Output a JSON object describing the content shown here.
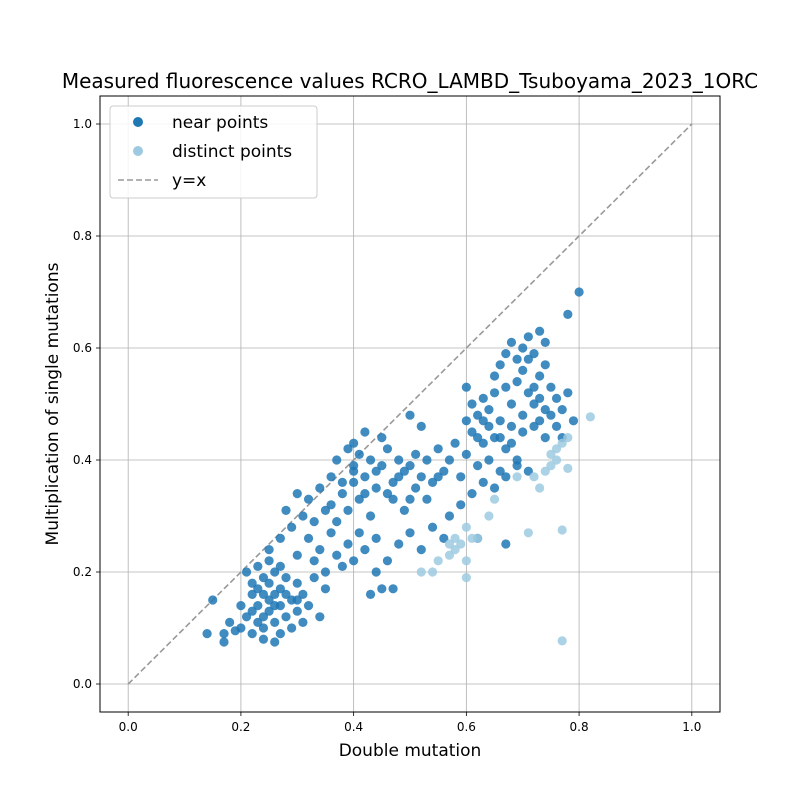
{
  "chart_data": {
    "type": "scatter",
    "title": "Measured fluorescence values RCRO_LAMBD_Tsuboyama_2023_1ORC",
    "xlabel": "Double mutation",
    "ylabel": "Multiplication of single mutations",
    "xlim": [
      -0.05,
      1.05
    ],
    "ylim": [
      -0.05,
      1.05
    ],
    "xticks": [
      "0.0",
      "0.2",
      "0.4",
      "0.6",
      "0.8",
      "1.0"
    ],
    "yticks": [
      "0.0",
      "0.2",
      "0.4",
      "0.6",
      "0.8",
      "1.0"
    ],
    "grid": true,
    "legend": {
      "placement": "top-left",
      "entries": [
        {
          "label": "near points",
          "kind": "marker",
          "color": "#1f77b4"
        },
        {
          "label": "distinct points",
          "kind": "marker",
          "color": "#9ecae1"
        },
        {
          "label": "y=x",
          "kind": "dashed-line",
          "color": "#999999"
        }
      ]
    },
    "reference_line": {
      "name": "y=x",
      "points": [
        [
          0,
          0
        ],
        [
          1,
          1
        ]
      ],
      "color": "#999999"
    },
    "series": [
      {
        "name": "near points",
        "color": "#1f77b4",
        "points": [
          [
            0.14,
            0.09
          ],
          [
            0.15,
            0.15
          ],
          [
            0.17,
            0.09
          ],
          [
            0.17,
            0.075
          ],
          [
            0.18,
            0.11
          ],
          [
            0.19,
            0.095
          ],
          [
            0.2,
            0.14
          ],
          [
            0.2,
            0.1
          ],
          [
            0.21,
            0.12
          ],
          [
            0.21,
            0.2
          ],
          [
            0.22,
            0.13
          ],
          [
            0.22,
            0.16
          ],
          [
            0.22,
            0.09
          ],
          [
            0.23,
            0.17
          ],
          [
            0.23,
            0.11
          ],
          [
            0.23,
            0.14
          ],
          [
            0.24,
            0.19
          ],
          [
            0.24,
            0.12
          ],
          [
            0.24,
            0.1
          ],
          [
            0.25,
            0.15
          ],
          [
            0.25,
            0.18
          ],
          [
            0.25,
            0.13
          ],
          [
            0.26,
            0.16
          ],
          [
            0.26,
            0.11
          ],
          [
            0.26,
            0.2
          ],
          [
            0.27,
            0.14
          ],
          [
            0.27,
            0.17
          ],
          [
            0.27,
            0.09
          ],
          [
            0.28,
            0.12
          ],
          [
            0.28,
            0.19
          ],
          [
            0.29,
            0.15
          ],
          [
            0.29,
            0.1
          ],
          [
            0.3,
            0.13
          ],
          [
            0.3,
            0.18
          ],
          [
            0.31,
            0.16
          ],
          [
            0.31,
            0.11
          ],
          [
            0.32,
            0.14
          ],
          [
            0.33,
            0.19
          ],
          [
            0.34,
            0.12
          ],
          [
            0.35,
            0.17
          ],
          [
            0.24,
            0.08
          ],
          [
            0.26,
            0.075
          ],
          [
            0.23,
            0.21
          ],
          [
            0.25,
            0.22
          ],
          [
            0.27,
            0.21
          ],
          [
            0.22,
            0.18
          ],
          [
            0.24,
            0.16
          ],
          [
            0.26,
            0.14
          ],
          [
            0.28,
            0.16
          ],
          [
            0.3,
            0.15
          ],
          [
            0.25,
            0.24
          ],
          [
            0.27,
            0.26
          ],
          [
            0.29,
            0.28
          ],
          [
            0.3,
            0.23
          ],
          [
            0.31,
            0.3
          ],
          [
            0.32,
            0.26
          ],
          [
            0.33,
            0.29
          ],
          [
            0.34,
            0.24
          ],
          [
            0.35,
            0.31
          ],
          [
            0.36,
            0.27
          ],
          [
            0.28,
            0.31
          ],
          [
            0.3,
            0.34
          ],
          [
            0.32,
            0.33
          ],
          [
            0.34,
            0.35
          ],
          [
            0.36,
            0.32
          ],
          [
            0.38,
            0.34
          ],
          [
            0.37,
            0.29
          ],
          [
            0.39,
            0.31
          ],
          [
            0.4,
            0.36
          ],
          [
            0.41,
            0.33
          ],
          [
            0.33,
            0.22
          ],
          [
            0.35,
            0.2
          ],
          [
            0.37,
            0.23
          ],
          [
            0.38,
            0.21
          ],
          [
            0.39,
            0.25
          ],
          [
            0.4,
            0.22
          ],
          [
            0.41,
            0.27
          ],
          [
            0.42,
            0.24
          ],
          [
            0.43,
            0.3
          ],
          [
            0.44,
            0.26
          ],
          [
            0.4,
            0.38
          ],
          [
            0.41,
            0.41
          ],
          [
            0.42,
            0.37
          ],
          [
            0.43,
            0.4
          ],
          [
            0.44,
            0.35
          ],
          [
            0.45,
            0.39
          ],
          [
            0.46,
            0.42
          ],
          [
            0.47,
            0.36
          ],
          [
            0.48,
            0.4
          ],
          [
            0.49,
            0.38
          ],
          [
            0.4,
            0.43
          ],
          [
            0.42,
            0.45
          ],
          [
            0.45,
            0.44
          ],
          [
            0.5,
            0.48
          ],
          [
            0.52,
            0.46
          ],
          [
            0.47,
            0.33
          ],
          [
            0.49,
            0.31
          ],
          [
            0.51,
            0.35
          ],
          [
            0.53,
            0.33
          ],
          [
            0.55,
            0.37
          ],
          [
            0.45,
            0.17
          ],
          [
            0.47,
            0.17
          ],
          [
            0.43,
            0.16
          ],
          [
            0.44,
            0.2
          ],
          [
            0.46,
            0.22
          ],
          [
            0.48,
            0.25
          ],
          [
            0.5,
            0.27
          ],
          [
            0.52,
            0.24
          ],
          [
            0.54,
            0.28
          ],
          [
            0.56,
            0.26
          ],
          [
            0.5,
            0.39
          ],
          [
            0.51,
            0.41
          ],
          [
            0.52,
            0.37
          ],
          [
            0.53,
            0.4
          ],
          [
            0.54,
            0.36
          ],
          [
            0.55,
            0.42
          ],
          [
            0.56,
            0.38
          ],
          [
            0.57,
            0.4
          ],
          [
            0.58,
            0.43
          ],
          [
            0.59,
            0.37
          ],
          [
            0.6,
            0.41
          ],
          [
            0.61,
            0.45
          ],
          [
            0.62,
            0.39
          ],
          [
            0.63,
            0.43
          ],
          [
            0.64,
            0.4
          ],
          [
            0.65,
            0.44
          ],
          [
            0.66,
            0.38
          ],
          [
            0.67,
            0.42
          ],
          [
            0.68,
            0.46
          ],
          [
            0.69,
            0.4
          ],
          [
            0.6,
            0.47
          ],
          [
            0.61,
            0.5
          ],
          [
            0.62,
            0.48
          ],
          [
            0.63,
            0.51
          ],
          [
            0.64,
            0.49
          ],
          [
            0.65,
            0.52
          ],
          [
            0.66,
            0.47
          ],
          [
            0.67,
            0.53
          ],
          [
            0.68,
            0.5
          ],
          [
            0.69,
            0.54
          ],
          [
            0.7,
            0.48
          ],
          [
            0.71,
            0.52
          ],
          [
            0.72,
            0.5
          ],
          [
            0.73,
            0.55
          ],
          [
            0.74,
            0.49
          ],
          [
            0.7,
            0.56
          ],
          [
            0.71,
            0.58
          ],
          [
            0.72,
            0.53
          ],
          [
            0.73,
            0.51
          ],
          [
            0.74,
            0.57
          ],
          [
            0.65,
            0.55
          ],
          [
            0.66,
            0.57
          ],
          [
            0.67,
            0.59
          ],
          [
            0.68,
            0.61
          ],
          [
            0.69,
            0.58
          ],
          [
            0.7,
            0.6
          ],
          [
            0.71,
            0.62
          ],
          [
            0.72,
            0.59
          ],
          [
            0.73,
            0.63
          ],
          [
            0.74,
            0.61
          ],
          [
            0.75,
            0.53
          ],
          [
            0.76,
            0.51
          ],
          [
            0.77,
            0.49
          ],
          [
            0.78,
            0.52
          ],
          [
            0.79,
            0.47
          ],
          [
            0.77,
            0.44
          ],
          [
            0.76,
            0.46
          ],
          [
            0.8,
            0.7
          ],
          [
            0.78,
            0.66
          ],
          [
            0.6,
            0.53
          ],
          [
            0.64,
            0.46
          ],
          [
            0.66,
            0.44
          ],
          [
            0.68,
            0.43
          ],
          [
            0.7,
            0.45
          ],
          [
            0.72,
            0.46
          ],
          [
            0.74,
            0.44
          ],
          [
            0.73,
            0.47
          ],
          [
            0.75,
            0.48
          ],
          [
            0.62,
            0.44
          ],
          [
            0.63,
            0.47
          ],
          [
            0.57,
            0.3
          ],
          [
            0.59,
            0.32
          ],
          [
            0.61,
            0.34
          ],
          [
            0.63,
            0.36
          ],
          [
            0.65,
            0.35
          ],
          [
            0.67,
            0.37
          ],
          [
            0.69,
            0.39
          ],
          [
            0.71,
            0.38
          ],
          [
            0.62,
            0.26
          ],
          [
            0.67,
            0.25
          ],
          [
            0.36,
            0.37
          ],
          [
            0.37,
            0.4
          ],
          [
            0.38,
            0.36
          ],
          [
            0.39,
            0.42
          ],
          [
            0.4,
            0.39
          ],
          [
            0.42,
            0.34
          ],
          [
            0.44,
            0.38
          ],
          [
            0.46,
            0.34
          ],
          [
            0.48,
            0.37
          ],
          [
            0.5,
            0.33
          ]
        ]
      },
      {
        "name": "distinct points",
        "color": "#9ecae1",
        "points": [
          [
            0.52,
            0.2
          ],
          [
            0.54,
            0.2
          ],
          [
            0.55,
            0.22
          ],
          [
            0.57,
            0.23
          ],
          [
            0.58,
            0.24
          ],
          [
            0.59,
            0.25
          ],
          [
            0.6,
            0.19
          ],
          [
            0.6,
            0.22
          ],
          [
            0.61,
            0.26
          ],
          [
            0.6,
            0.28
          ],
          [
            0.62,
            0.26
          ],
          [
            0.64,
            0.3
          ],
          [
            0.65,
            0.33
          ],
          [
            0.69,
            0.37
          ],
          [
            0.71,
            0.27
          ],
          [
            0.73,
            0.35
          ],
          [
            0.74,
            0.38
          ],
          [
            0.75,
            0.41
          ],
          [
            0.76,
            0.4
          ],
          [
            0.77,
            0.43
          ],
          [
            0.78,
            0.44
          ],
          [
            0.78,
            0.385
          ],
          [
            0.77,
            0.275
          ],
          [
            0.77,
            0.077
          ],
          [
            0.82,
            0.477
          ],
          [
            0.57,
            0.25
          ],
          [
            0.58,
            0.26
          ],
          [
            0.72,
            0.37
          ],
          [
            0.76,
            0.42
          ],
          [
            0.75,
            0.39
          ]
        ]
      }
    ]
  }
}
